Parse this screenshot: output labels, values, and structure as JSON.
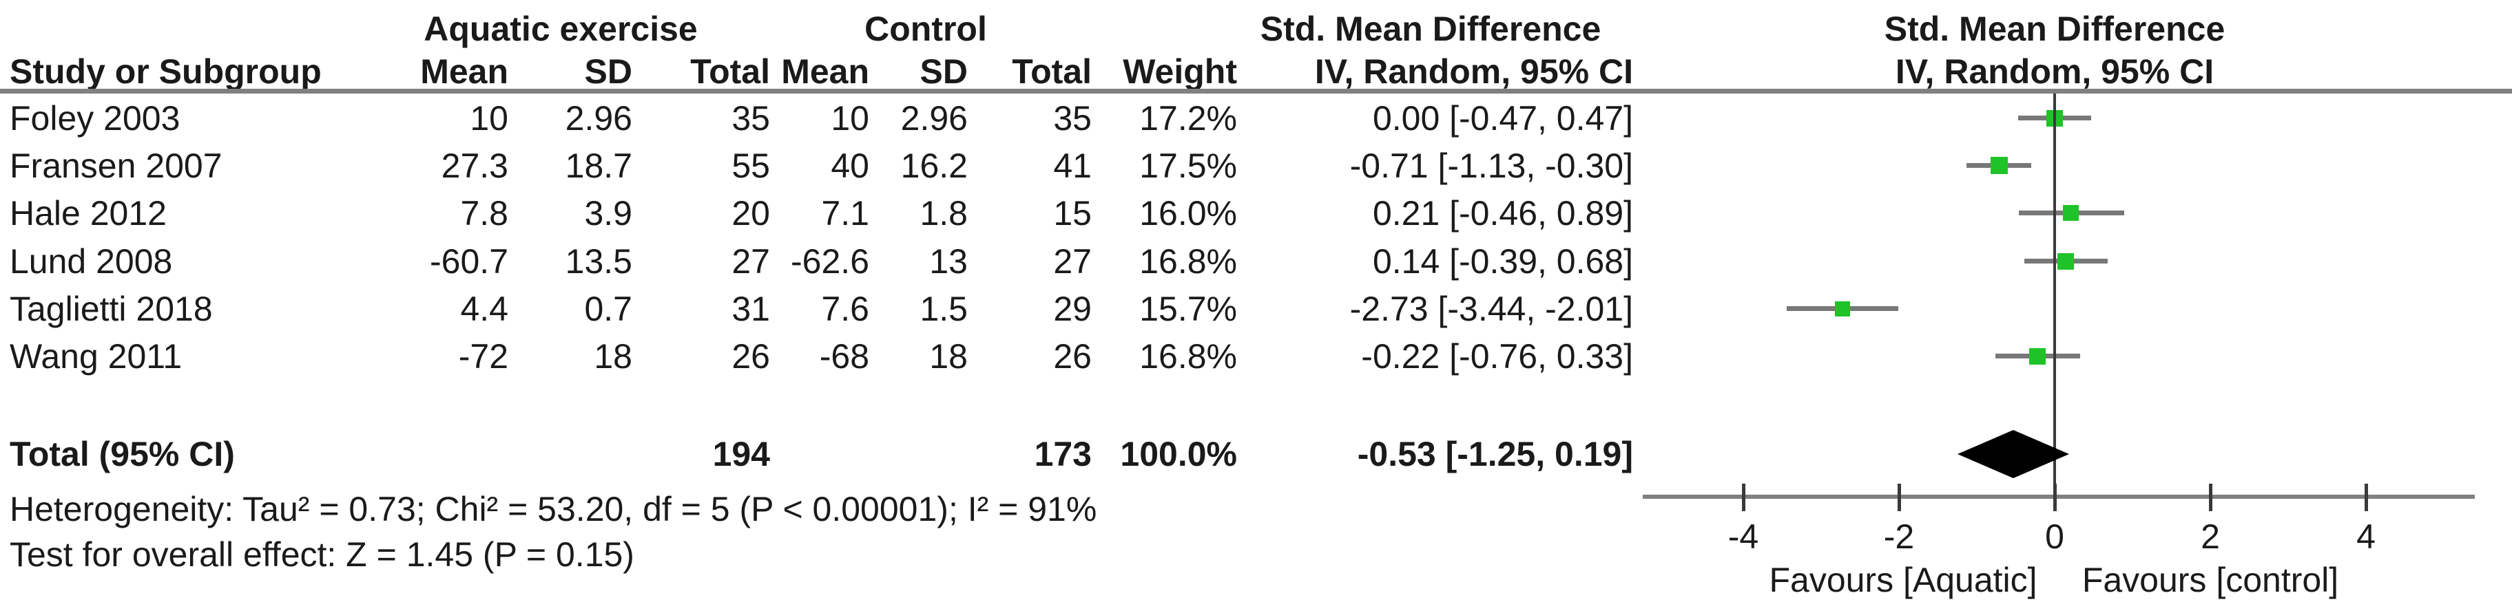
{
  "figure": {
    "group1_header": "Aquatic exercise",
    "group2_header": "Control",
    "effect_header_line1": "Std. Mean Difference",
    "effect_header_line2": "IV, Random, 95% CI",
    "plot_header_line1": "Std. Mean Difference",
    "plot_header_line2": "IV, Random, 95% CI",
    "columns": {
      "study": "Study or Subgroup",
      "exp_mean": "Mean",
      "exp_sd": "SD",
      "exp_total": "Total",
      "ctl_mean": "Mean",
      "ctl_sd": "SD",
      "ctl_total": "Total",
      "weight": "Weight"
    }
  },
  "chart_data": {
    "type": "forest",
    "effect_measure": "Std. Mean Difference",
    "model": "IV, Random, 95% CI",
    "x_axis": {
      "ticks": [
        -4,
        -2,
        0,
        2,
        4
      ],
      "tick_labels": [
        "-4",
        "-2",
        "0",
        "2",
        "4"
      ],
      "xlim": [
        -5.3,
        5.4
      ],
      "favours_left": "Favours [Aquatic]",
      "favours_right": "Favours [control]"
    },
    "studies": [
      {
        "name": "Foley 2003",
        "exp_mean": "10",
        "exp_sd": "2.96",
        "exp_n": "35",
        "ctl_mean": "10",
        "ctl_sd": "2.96",
        "ctl_n": "35",
        "weight": "17.2%",
        "weight_pct": 17.2,
        "ci_text": "0.00 [-0.47, 0.47]",
        "smd": 0.0,
        "ci_low": -0.47,
        "ci_high": 0.47
      },
      {
        "name": "Fransen 2007",
        "exp_mean": "27.3",
        "exp_sd": "18.7",
        "exp_n": "55",
        "ctl_mean": "40",
        "ctl_sd": "16.2",
        "ctl_n": "41",
        "weight": "17.5%",
        "weight_pct": 17.5,
        "ci_text": "-0.71 [-1.13, -0.30]",
        "smd": -0.71,
        "ci_low": -1.13,
        "ci_high": -0.3
      },
      {
        "name": "Hale 2012",
        "exp_mean": "7.8",
        "exp_sd": "3.9",
        "exp_n": "20",
        "ctl_mean": "7.1",
        "ctl_sd": "1.8",
        "ctl_n": "15",
        "weight": "16.0%",
        "weight_pct": 16.0,
        "ci_text": "0.21 [-0.46, 0.89]",
        "smd": 0.21,
        "ci_low": -0.46,
        "ci_high": 0.89
      },
      {
        "name": "Lund 2008",
        "exp_mean": "-60.7",
        "exp_sd": "13.5",
        "exp_n": "27",
        "ctl_mean": "-62.6",
        "ctl_sd": "13",
        "ctl_n": "27",
        "weight": "16.8%",
        "weight_pct": 16.8,
        "ci_text": "0.14 [-0.39, 0.68]",
        "smd": 0.14,
        "ci_low": -0.39,
        "ci_high": 0.68
      },
      {
        "name": "Taglietti 2018",
        "exp_mean": "4.4",
        "exp_sd": "0.7",
        "exp_n": "31",
        "ctl_mean": "7.6",
        "ctl_sd": "1.5",
        "ctl_n": "29",
        "weight": "15.7%",
        "weight_pct": 15.7,
        "ci_text": "-2.73 [-3.44, -2.01]",
        "smd": -2.73,
        "ci_low": -3.44,
        "ci_high": -2.01
      },
      {
        "name": "Wang 2011",
        "exp_mean": "-72",
        "exp_sd": "18",
        "exp_n": "26",
        "ctl_mean": "-68",
        "ctl_sd": "18",
        "ctl_n": "26",
        "weight": "16.8%",
        "weight_pct": 16.8,
        "ci_text": "-0.22 [-0.76, 0.33]",
        "smd": -0.22,
        "ci_low": -0.76,
        "ci_high": 0.33
      }
    ],
    "total": {
      "label": "Total (95% CI)",
      "exp_n": "194",
      "ctl_n": "173",
      "weight": "100.0%",
      "ci_text": "-0.53 [-1.25, 0.19]",
      "smd": -0.53,
      "ci_low": -1.25,
      "ci_high": 0.19
    },
    "footnotes": {
      "heterogeneity": "Heterogeneity: Tau² = 0.73; Chi² = 53.20, df = 5 (P < 0.00001); I² = 91%",
      "overall_effect": "Test for overall effect: Z = 1.45 (P = 0.15)"
    },
    "colors": {
      "marker": "#1ec328",
      "ci_line": "#787878",
      "diamond": "#000000",
      "axis_line": "#808080",
      "header_rule": "#808080",
      "zero_line": "#3a3a3a",
      "text": "#1a1a1a"
    }
  }
}
